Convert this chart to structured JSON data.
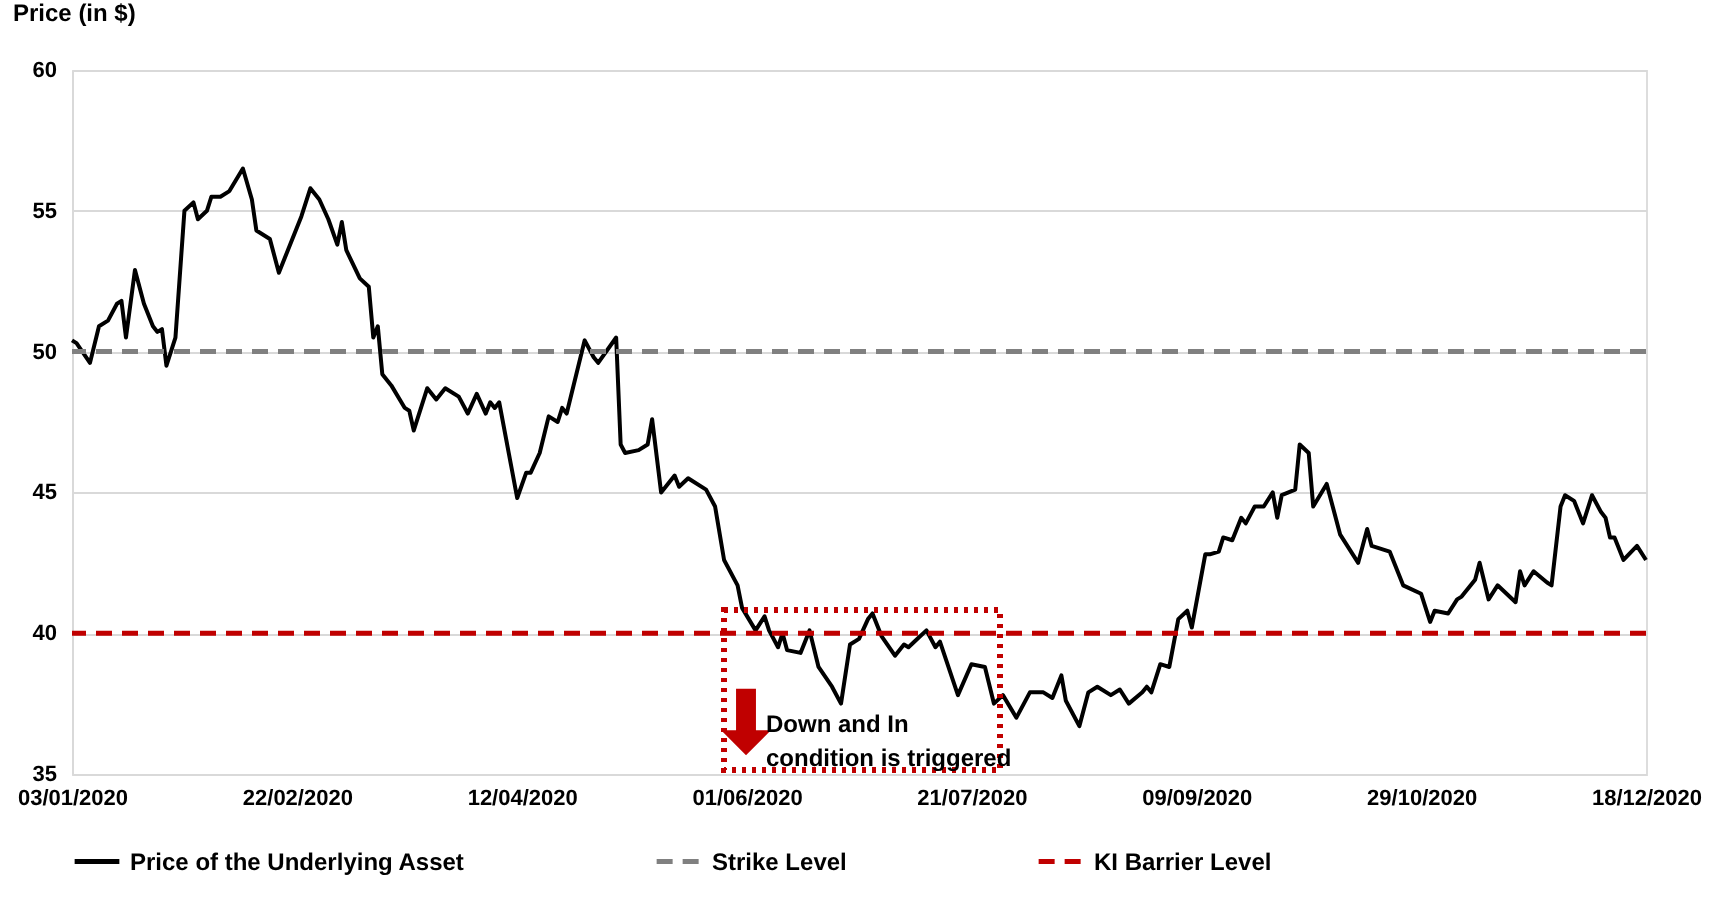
{
  "chart_data": {
    "type": "line",
    "ylabel": "Price (in $)",
    "x": [
      "2020-01-03",
      "2020-01-04",
      "2020-01-07",
      "2020-01-09",
      "2020-01-11",
      "2020-01-13",
      "2020-01-14",
      "2020-01-15",
      "2020-01-17",
      "2020-01-19",
      "2020-01-21",
      "2020-01-22",
      "2020-01-23",
      "2020-01-24",
      "2020-01-26",
      "2020-01-28",
      "2020-01-30",
      "2020-01-31",
      "2020-02-02",
      "2020-02-03",
      "2020-02-05",
      "2020-02-07",
      "2020-02-10",
      "2020-02-12",
      "2020-02-13",
      "2020-02-16",
      "2020-02-18",
      "2020-02-20",
      "2020-02-23",
      "2020-02-25",
      "2020-02-27",
      "2020-02-29",
      "2020-03-02",
      "2020-03-03",
      "2020-03-04",
      "2020-03-07",
      "2020-03-09",
      "2020-03-10",
      "2020-03-11",
      "2020-03-12",
      "2020-03-14",
      "2020-03-17",
      "2020-03-18",
      "2020-03-19",
      "2020-03-22",
      "2020-03-24",
      "2020-03-26",
      "2020-03-29",
      "2020-03-31",
      "2020-04-02",
      "2020-04-04",
      "2020-04-05",
      "2020-04-06",
      "2020-04-07",
      "2020-04-11",
      "2020-04-13",
      "2020-04-14",
      "2020-04-16",
      "2020-04-18",
      "2020-04-20",
      "2020-04-21",
      "2020-04-22",
      "2020-04-26",
      "2020-04-28",
      "2020-04-29",
      "2020-05-03",
      "2020-05-04",
      "2020-05-05",
      "2020-05-08",
      "2020-05-10",
      "2020-05-11",
      "2020-05-13",
      "2020-05-16",
      "2020-05-17",
      "2020-05-19",
      "2020-05-23",
      "2020-05-25",
      "2020-05-27",
      "2020-05-30",
      "2020-05-31",
      "2020-06-03",
      "2020-06-05",
      "2020-06-06",
      "2020-06-08",
      "2020-06-09",
      "2020-06-10",
      "2020-06-13",
      "2020-06-15",
      "2020-06-17",
      "2020-06-20",
      "2020-06-22",
      "2020-06-24",
      "2020-06-26",
      "2020-06-28",
      "2020-06-29",
      "2020-07-01",
      "2020-07-04",
      "2020-07-06",
      "2020-07-07",
      "2020-07-09",
      "2020-07-11",
      "2020-07-13",
      "2020-07-14",
      "2020-07-18",
      "2020-07-21",
      "2020-07-24",
      "2020-07-26",
      "2020-07-28",
      "2020-07-31",
      "2020-08-03",
      "2020-08-06",
      "2020-08-08",
      "2020-08-10",
      "2020-08-11",
      "2020-08-14",
      "2020-08-16",
      "2020-08-18",
      "2020-08-21",
      "2020-08-23",
      "2020-08-25",
      "2020-08-28",
      "2020-08-29",
      "2020-08-30",
      "2020-09-01",
      "2020-09-03",
      "2020-09-05",
      "2020-09-07",
      "2020-09-08",
      "2020-09-11",
      "2020-09-12",
      "2020-09-14",
      "2020-09-15",
      "2020-09-17",
      "2020-09-19",
      "2020-09-20",
      "2020-09-22",
      "2020-09-24",
      "2020-09-26",
      "2020-09-27",
      "2020-09-28",
      "2020-10-01",
      "2020-10-02",
      "2020-10-04",
      "2020-10-05",
      "2020-10-08",
      "2020-10-11",
      "2020-10-15",
      "2020-10-17",
      "2020-10-18",
      "2020-10-22",
      "2020-10-24",
      "2020-10-25",
      "2020-10-29",
      "2020-10-30",
      "2020-10-31",
      "2020-11-01",
      "2020-11-04",
      "2020-11-06",
      "2020-11-07",
      "2020-11-10",
      "2020-11-11",
      "2020-11-13",
      "2020-11-15",
      "2020-11-19",
      "2020-11-20",
      "2020-11-21",
      "2020-11-23",
      "2020-11-26",
      "2020-11-27",
      "2020-11-29",
      "2020-11-30",
      "2020-12-02",
      "2020-12-04",
      "2020-12-06",
      "2020-12-08",
      "2020-12-09",
      "2020-12-10",
      "2020-12-11",
      "2020-12-13",
      "2020-12-16",
      "2020-12-18"
    ],
    "series": [
      {
        "name": "Price of the Underlying Asset",
        "color": "#000000",
        "values": [
          50.4,
          50.3,
          49.6,
          50.9,
          51.1,
          51.7,
          51.8,
          50.5,
          52.9,
          51.7,
          50.9,
          50.7,
          50.8,
          49.5,
          50.5,
          55.0,
          55.3,
          54.7,
          55.0,
          55.5,
          55.5,
          55.7,
          56.5,
          55.4,
          54.3,
          54.0,
          52.8,
          53.6,
          54.8,
          55.8,
          55.4,
          54.7,
          53.8,
          54.6,
          53.6,
          52.6,
          52.3,
          50.5,
          50.9,
          49.2,
          48.8,
          48.0,
          47.9,
          47.2,
          48.7,
          48.3,
          48.7,
          48.4,
          47.8,
          48.5,
          47.8,
          48.2,
          48.0,
          48.2,
          44.8,
          45.7,
          45.7,
          46.4,
          47.7,
          47.5,
          48.0,
          47.8,
          50.4,
          49.8,
          49.6,
          50.5,
          46.7,
          46.4,
          46.5,
          46.7,
          47.6,
          45.0,
          45.6,
          45.2,
          45.5,
          45.1,
          44.5,
          42.6,
          41.7,
          40.9,
          40.1,
          40.6,
          40.1,
          39.5,
          40.0,
          39.4,
          39.3,
          40.1,
          38.8,
          38.1,
          37.5,
          39.6,
          39.8,
          40.5,
          40.7,
          39.9,
          39.2,
          39.6,
          39.5,
          39.8,
          40.1,
          39.5,
          39.7,
          37.8,
          38.9,
          38.8,
          37.5,
          37.8,
          37.0,
          37.9,
          37.9,
          37.7,
          38.5,
          37.6,
          36.7,
          37.9,
          38.1,
          37.8,
          38.0,
          37.5,
          37.9,
          38.1,
          37.9,
          38.9,
          38.8,
          40.5,
          40.8,
          40.2,
          42.8,
          42.8,
          42.9,
          43.4,
          43.3,
          44.1,
          43.9,
          44.5,
          44.5,
          45.0,
          44.1,
          44.9,
          45.1,
          46.7,
          46.4,
          44.5,
          45.3,
          43.5,
          42.5,
          43.7,
          43.1,
          42.9,
          42.1,
          41.7,
          41.4,
          40.9,
          40.4,
          40.8,
          40.7,
          41.2,
          41.3,
          41.9,
          42.5,
          41.2,
          41.7,
          41.1,
          42.2,
          41.7,
          42.2,
          41.8,
          41.7,
          44.5,
          44.9,
          44.7,
          43.9,
          44.9,
          44.3,
          44.1,
          43.4,
          43.4,
          42.6,
          43.1,
          42.6
        ]
      }
    ],
    "ref_lines": [
      {
        "axis": "y",
        "value": 50,
        "label": "Strike Level",
        "color": "#808080",
        "line_style": "dashed"
      },
      {
        "axis": "y",
        "value": 40,
        "label": "KI Barrier Level",
        "color": "#c00000",
        "line_style": "dashed"
      }
    ],
    "annotations": [
      "Down and In\ncondition is triggered"
    ],
    "xlim": [
      "2020-01-03",
      "2020-12-18"
    ],
    "xticks": [
      {
        "value": "2020-01-03",
        "label": "03/01/2020"
      },
      {
        "value": "2020-02-22",
        "label": "22/02/2020"
      },
      {
        "value": "2020-04-12",
        "label": "12/04/2020"
      },
      {
        "value": "2020-06-01",
        "label": "01/06/2020"
      },
      {
        "value": "2020-07-21",
        "label": "21/07/2020"
      },
      {
        "value": "2020-09-09",
        "label": "09/09/2020"
      },
      {
        "value": "2020-10-29",
        "label": "29/10/2020"
      },
      {
        "value": "2020-12-18",
        "label": "18/12/2020"
      }
    ],
    "ylim": [
      35,
      60
    ],
    "yticks": [
      35,
      40,
      45,
      50,
      55,
      60
    ],
    "grid": "y",
    "legend": "bottom",
    "marker": "none",
    "line_style": "solid"
  }
}
